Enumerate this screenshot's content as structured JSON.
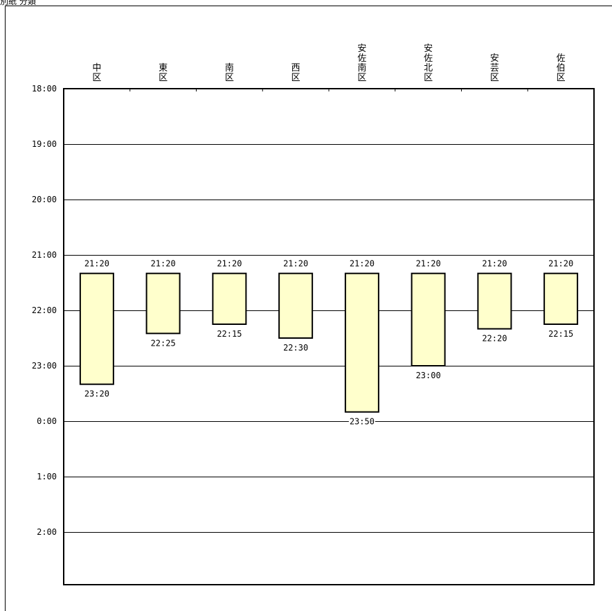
{
  "header": {
    "text": "別紙 分類"
  },
  "chart_data": {
    "type": "bar",
    "subtype": "floating-range",
    "categories": [
      "中区",
      "東区",
      "南区",
      "西区",
      "安佐南区",
      "安佐北区",
      "安芸区",
      "佐伯区"
    ],
    "category_lines": [
      [
        "中",
        "区"
      ],
      [
        "東",
        "区"
      ],
      [
        "南",
        "区"
      ],
      [
        "西",
        "区"
      ],
      [
        "安",
        "佐",
        "南",
        "区"
      ],
      [
        "安",
        "佐",
        "北",
        "区"
      ],
      [
        "安",
        "芸",
        "区"
      ],
      [
        "佐",
        "伯",
        "区"
      ]
    ],
    "start_labels": [
      "21:20",
      "21:20",
      "21:20",
      "21:20",
      "21:20",
      "21:20",
      "21:20",
      "21:20"
    ],
    "end_labels": [
      "23:20",
      "22:25",
      "22:15",
      "22:30",
      "23:50",
      "23:00",
      "22:20",
      "22:15"
    ],
    "start_minutes_after_18": [
      200,
      200,
      200,
      200,
      200,
      200,
      200,
      200
    ],
    "end_minutes_after_18": [
      320,
      265,
      255,
      270,
      350,
      300,
      260,
      255
    ],
    "y_ticks": [
      "18:00",
      "19:00",
      "20:00",
      "21:00",
      "22:00",
      "23:00",
      "0:00",
      "1:00",
      "2:00"
    ],
    "ylim_minutes_after_18": [
      0,
      540
    ],
    "y_inverted": true,
    "grid": true,
    "colors": {
      "bar_fill": "#ffffcc",
      "bar_stroke": "#000000",
      "grid": "#000000"
    }
  }
}
